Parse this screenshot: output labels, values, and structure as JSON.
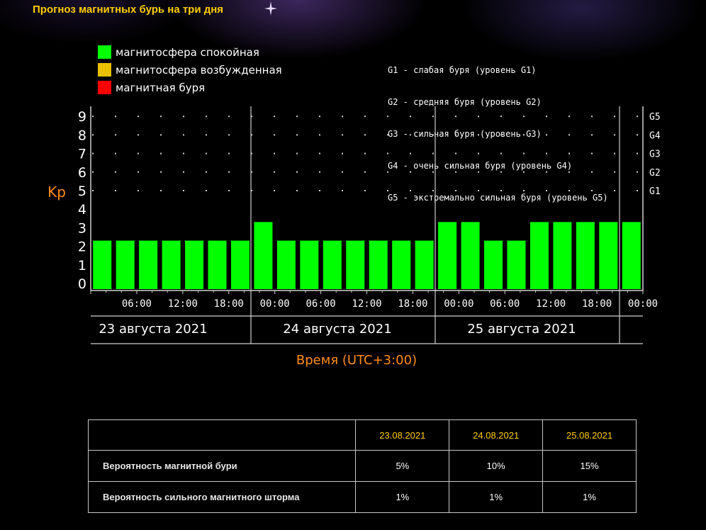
{
  "page": {
    "title": "Прогноз магнитных бурь на три дня"
  },
  "legend": [
    {
      "label": "магнитосфера спокойная",
      "color": "#00ff00"
    },
    {
      "label": "магнитосфера возбужденная",
      "color": "#e8c000"
    },
    {
      "label": "магнитная буря",
      "color": "#ff0000"
    }
  ],
  "g_levels": [
    "G1 - слабая буря (уровень G1)",
    "G2 - средняя буря (уровень G2)",
    "G3 - сильная буря (уровень G3)",
    "G4 - очень сильная буря (уровень G4)",
    "G5 - экстремально сильная буря (уровень G5)"
  ],
  "chart_data": {
    "type": "bar",
    "ylabel": "Kp",
    "xlabel": "Время (UTC+3:00)",
    "ylim": [
      0,
      9
    ],
    "yticks": [
      0,
      1,
      2,
      3,
      4,
      5,
      6,
      7,
      8,
      9
    ],
    "right_ticks": [
      {
        "value": 5,
        "label": "G1"
      },
      {
        "value": 6,
        "label": "G2"
      },
      {
        "value": 7,
        "label": "G3"
      },
      {
        "value": 8,
        "label": "G4"
      },
      {
        "value": 9,
        "label": "G5"
      }
    ],
    "time_labels": [
      "06:00",
      "12:00",
      "18:00",
      "00:00",
      "06:00",
      "12:00",
      "18:00",
      "00:00",
      "06:00",
      "12:00",
      "18:00",
      "00:00"
    ],
    "days": [
      "23 августа 2021",
      "24 августа 2021",
      "25 августа 2021"
    ],
    "values": [
      2,
      2,
      2,
      2,
      2,
      2,
      2,
      3,
      2,
      2,
      2,
      2,
      2,
      2,
      2,
      3,
      3,
      2,
      2,
      3,
      3,
      3,
      3,
      3
    ],
    "bar_color": "#00ff00",
    "grid": true
  },
  "table": {
    "headers": [
      "23.08.2021",
      "24.08.2021",
      "25.08.2021"
    ],
    "rows": [
      {
        "label": "Вероятность магнитной бури",
        "values": [
          "5%",
          "10%",
          "15%"
        ]
      },
      {
        "label": "Вероятность сильного магнитного шторма",
        "values": [
          "1%",
          "1%",
          "1%"
        ]
      }
    ]
  }
}
